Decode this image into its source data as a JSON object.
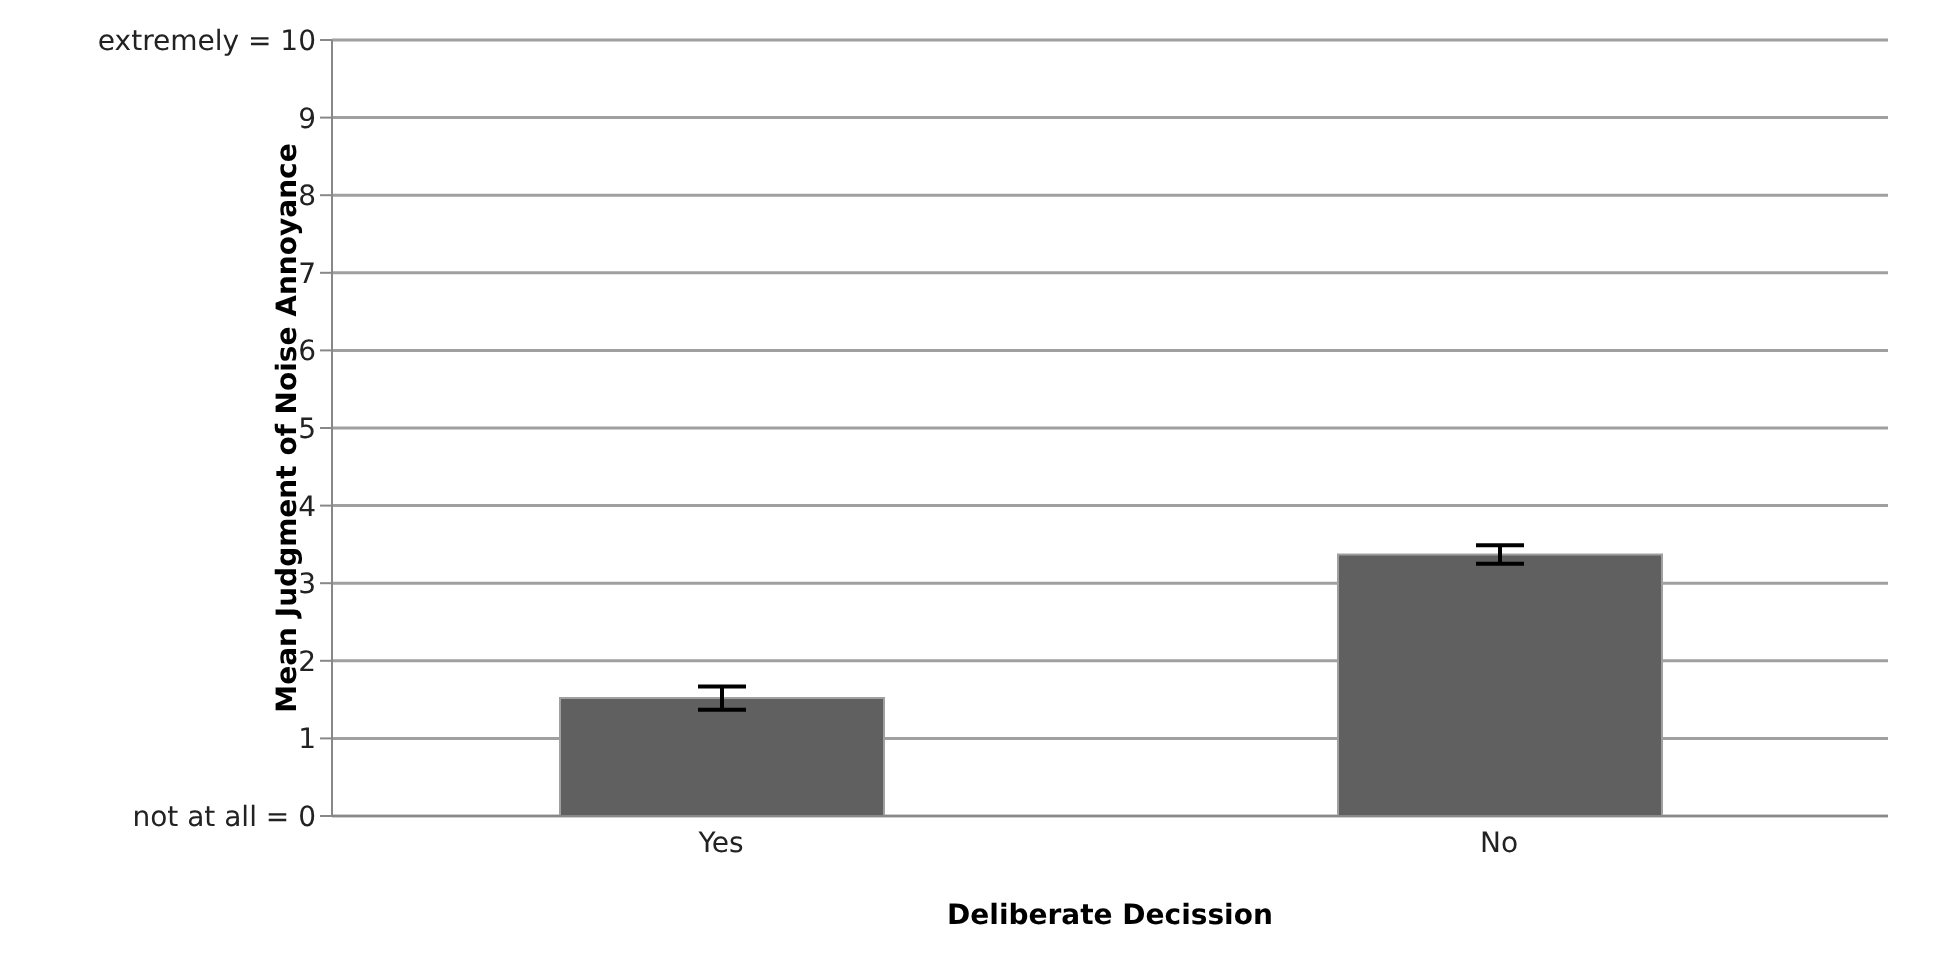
{
  "chart_data": {
    "type": "bar",
    "xlabel": "Deliberate Decission",
    "ylabel": "Mean Judgment of Noise Annoyance",
    "categories": [
      "Yes",
      "No"
    ],
    "values": [
      1.52,
      3.37
    ],
    "errors": [
      0.15,
      0.12
    ],
    "color": "#606060",
    "ylim": [
      0,
      10
    ],
    "yticks": [
      {
        "value": 0,
        "label": "not at all = 0"
      },
      1,
      2,
      3,
      4,
      5,
      6,
      7,
      8,
      9,
      {
        "value": 10,
        "label": "extremely = 10"
      }
    ],
    "grid": "y",
    "legend": false
  }
}
